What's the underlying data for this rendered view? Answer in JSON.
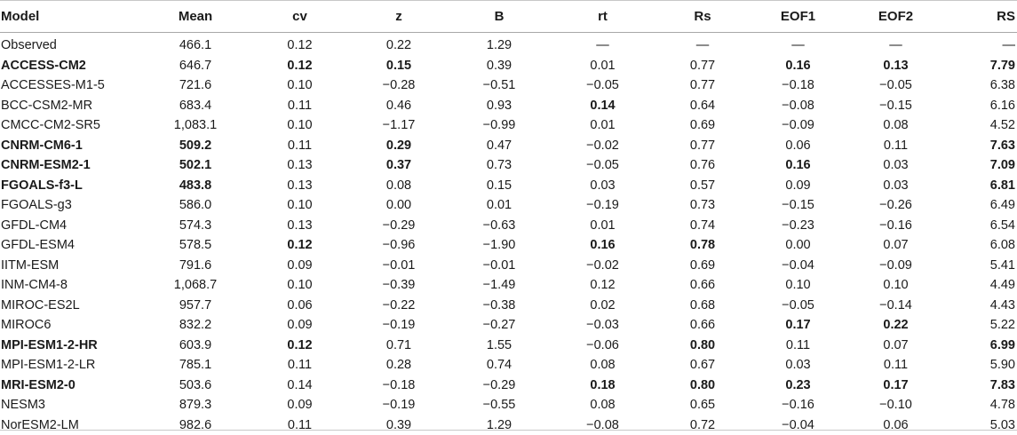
{
  "table": {
    "headers": [
      "Model",
      "Mean",
      "cv",
      "z",
      "B",
      "rt",
      "Rs",
      "EOF1",
      "EOF2",
      "RS"
    ],
    "rows": [
      {
        "model": "Observed",
        "bold_model": false,
        "cells": [
          "466.1",
          "0.12",
          "0.22",
          "1.29",
          "—",
          "—",
          "—",
          "—",
          "—"
        ],
        "bold": []
      },
      {
        "model": "ACCESS-CM2",
        "bold_model": true,
        "cells": [
          "646.7",
          "0.12",
          "0.15",
          "0.39",
          "0.01",
          "0.77",
          "0.16",
          "0.13",
          "7.79"
        ],
        "bold": [
          1,
          2,
          6,
          7,
          8
        ]
      },
      {
        "model": "ACCESSES-M1-5",
        "bold_model": false,
        "cells": [
          "721.6",
          "0.10",
          "−0.28",
          "−0.51",
          "−0.05",
          "0.77",
          "−0.18",
          "−0.05",
          "6.38"
        ],
        "bold": []
      },
      {
        "model": "BCC-CSM2-MR",
        "bold_model": false,
        "cells": [
          "683.4",
          "0.11",
          "0.46",
          "0.93",
          "0.14",
          "0.64",
          "−0.08",
          "−0.15",
          "6.16"
        ],
        "bold": [
          4
        ]
      },
      {
        "model": "CMCC-CM2-SR5",
        "bold_model": false,
        "cells": [
          "1,083.1",
          "0.10",
          "−1.17",
          "−0.99",
          "0.01",
          "0.69",
          "−0.09",
          "0.08",
          "4.52"
        ],
        "bold": []
      },
      {
        "model": "CNRM-CM6-1",
        "bold_model": true,
        "cells": [
          "509.2",
          "0.11",
          "0.29",
          "0.47",
          "−0.02",
          "0.77",
          "0.06",
          "0.11",
          "7.63"
        ],
        "bold": [
          0,
          2,
          8
        ]
      },
      {
        "model": "CNRM-ESM2-1",
        "bold_model": true,
        "cells": [
          "502.1",
          "0.13",
          "0.37",
          "0.73",
          "−0.05",
          "0.76",
          "0.16",
          "0.03",
          "7.09"
        ],
        "bold": [
          0,
          2,
          6,
          8
        ]
      },
      {
        "model": "FGOALS-f3-L",
        "bold_model": true,
        "cells": [
          "483.8",
          "0.13",
          "0.08",
          "0.15",
          "0.03",
          "0.57",
          "0.09",
          "0.03",
          "6.81"
        ],
        "bold": [
          0,
          8
        ]
      },
      {
        "model": "FGOALS-g3",
        "bold_model": false,
        "cells": [
          "586.0",
          "0.10",
          "0.00",
          "0.01",
          "−0.19",
          "0.73",
          "−0.15",
          "−0.26",
          "6.49"
        ],
        "bold": []
      },
      {
        "model": "GFDL-CM4",
        "bold_model": false,
        "cells": [
          "574.3",
          "0.13",
          "−0.29",
          "−0.63",
          "0.01",
          "0.74",
          "−0.23",
          "−0.16",
          "6.54"
        ],
        "bold": []
      },
      {
        "model": "GFDL-ESM4",
        "bold_model": false,
        "cells": [
          "578.5",
          "0.12",
          "−0.96",
          "−1.90",
          "0.16",
          "0.78",
          "0.00",
          "0.07",
          "6.08"
        ],
        "bold": [
          1,
          4,
          5
        ]
      },
      {
        "model": "IITM-ESM",
        "bold_model": false,
        "cells": [
          "791.6",
          "0.09",
          "−0.01",
          "−0.01",
          "−0.02",
          "0.69",
          "−0.04",
          "−0.09",
          "5.41"
        ],
        "bold": []
      },
      {
        "model": "INM-CM4-8",
        "bold_model": false,
        "cells": [
          "1,068.7",
          "0.10",
          "−0.39",
          "−1.49",
          "0.12",
          "0.66",
          "0.10",
          "0.10",
          "4.49"
        ],
        "bold": []
      },
      {
        "model": "MIROC-ES2L",
        "bold_model": false,
        "cells": [
          "957.7",
          "0.06",
          "−0.22",
          "−0.38",
          "0.02",
          "0.68",
          "−0.05",
          "−0.14",
          "4.43"
        ],
        "bold": []
      },
      {
        "model": "MIROC6",
        "bold_model": false,
        "cells": [
          "832.2",
          "0.09",
          "−0.19",
          "−0.27",
          "−0.03",
          "0.66",
          "0.17",
          "0.22",
          "5.22"
        ],
        "bold": [
          6,
          7
        ]
      },
      {
        "model": "MPI-ESM1-2-HR",
        "bold_model": true,
        "cells": [
          "603.9",
          "0.12",
          "0.71",
          "1.55",
          "−0.06",
          "0.80",
          "0.11",
          "0.07",
          "6.99"
        ],
        "bold": [
          1,
          5,
          8
        ]
      },
      {
        "model": "MPI-ESM1-2-LR",
        "bold_model": false,
        "cells": [
          "785.1",
          "0.11",
          "0.28",
          "0.74",
          "0.08",
          "0.67",
          "0.03",
          "0.11",
          "5.90"
        ],
        "bold": []
      },
      {
        "model": "MRI-ESM2-0",
        "bold_model": true,
        "cells": [
          "503.6",
          "0.14",
          "−0.18",
          "−0.29",
          "0.18",
          "0.80",
          "0.23",
          "0.17",
          "7.83"
        ],
        "bold": [
          4,
          5,
          6,
          7,
          8
        ]
      },
      {
        "model": "NESM3",
        "bold_model": false,
        "cells": [
          "879.3",
          "0.09",
          "−0.19",
          "−0.55",
          "0.08",
          "0.65",
          "−0.16",
          "−0.10",
          "4.78"
        ],
        "bold": []
      },
      {
        "model": "NorESM2-LM",
        "bold_model": false,
        "cells": [
          "982.6",
          "0.11",
          "0.39",
          "1.29",
          "−0.08",
          "0.72",
          "−0.04",
          "0.06",
          "5.03"
        ],
        "bold": []
      }
    ]
  }
}
